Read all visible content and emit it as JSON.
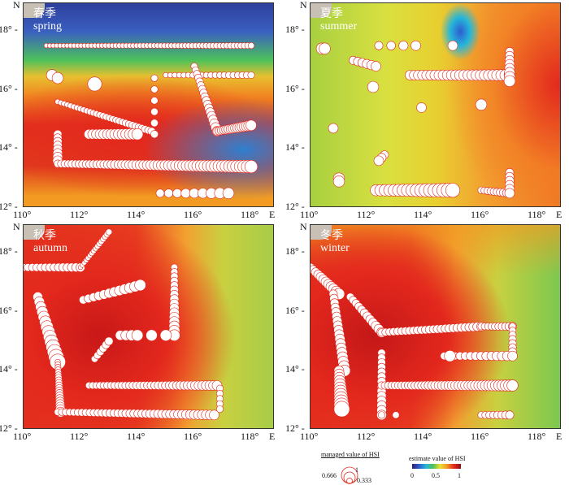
{
  "axes": {
    "x_ticks": [
      "110°",
      "112°",
      "114°",
      "116°",
      "118°"
    ],
    "x_unit": "E",
    "y_ticks": [
      "12°",
      "14°",
      "16°",
      "18°"
    ],
    "y_unit": "N"
  },
  "panels": [
    {
      "id": "spring",
      "zh": "春季",
      "en": "spring",
      "tracks": [
        [
          110.8,
          17.5,
          118,
          17.5,
          60,
          0.15,
          0.25
        ],
        [
          111.2,
          15.6,
          114.5,
          14.6,
          30,
          0.2,
          0.35
        ],
        [
          111.2,
          14.5,
          111.2,
          13.6,
          8,
          0.4,
          0.5
        ],
        [
          111.2,
          13.5,
          118,
          13.4,
          55,
          0.35,
          0.7
        ],
        [
          112.3,
          14.5,
          114,
          14.5,
          14,
          0.5,
          0.6
        ],
        [
          115,
          16.5,
          118,
          16.5,
          20,
          0.2,
          0.3
        ],
        [
          116,
          16.8,
          116.8,
          14.6,
          18,
          0.3,
          0.5
        ],
        [
          116.8,
          14.6,
          118,
          14.8,
          16,
          0.4,
          0.55
        ],
        [
          114.6,
          16.4,
          114.6,
          14.5,
          6,
          0.3,
          0.35
        ],
        [
          114.8,
          12.5,
          117.2,
          12.5,
          9,
          0.4,
          0.6
        ],
        [
          111,
          16.5,
          111.2,
          16.4,
          2,
          0.6,
          0.6
        ],
        [
          112.5,
          16.2,
          112.5,
          16.2,
          1,
          0.8,
          0.8
        ]
      ]
    },
    {
      "id": "summer",
      "zh": "夏季",
      "en": "summer",
      "tracks": [
        [
          110.4,
          17.4,
          110.5,
          17.4,
          2,
          0.6,
          0.6
        ],
        [
          111.5,
          17,
          112.3,
          16.8,
          6,
          0.4,
          0.5
        ],
        [
          112.4,
          17.5,
          113.7,
          17.5,
          4,
          0.4,
          0.5
        ],
        [
          115,
          17.5,
          115,
          17.5,
          1,
          0.5,
          0.5
        ],
        [
          113.5,
          16.5,
          117,
          16.5,
          25,
          0.5,
          0.6
        ],
        [
          117,
          17.3,
          117,
          16.3,
          8,
          0.4,
          0.6
        ],
        [
          112.2,
          16.1,
          112.2,
          16.1,
          1,
          0.6,
          0.6
        ],
        [
          113.9,
          15.4,
          113.9,
          15.4,
          1,
          0.5,
          0.5
        ],
        [
          116,
          15.5,
          116,
          15.5,
          1,
          0.6,
          0.6
        ],
        [
          110.8,
          14.7,
          110.8,
          14.7,
          1,
          0.5,
          0.5
        ],
        [
          112.6,
          13.8,
          112.4,
          13.6,
          3,
          0.4,
          0.5
        ],
        [
          111,
          13,
          111,
          12.9,
          2,
          0.6,
          0.6
        ],
        [
          112.3,
          12.6,
          115,
          12.6,
          18,
          0.6,
          0.8
        ],
        [
          116,
          12.6,
          117,
          12.5,
          10,
          0.3,
          0.4
        ],
        [
          117,
          13.2,
          117,
          12.5,
          6,
          0.4,
          0.5
        ]
      ]
    },
    {
      "id": "autumn",
      "zh": "秋季",
      "en": "autumn",
      "tracks": [
        [
          110,
          17.5,
          112,
          17.5,
          14,
          0.35,
          0.45
        ],
        [
          112,
          17.5,
          113,
          18.7,
          16,
          0.15,
          0.25
        ],
        [
          110.5,
          16.5,
          111.2,
          14.3,
          14,
          0.5,
          0.9
        ],
        [
          111.2,
          14.3,
          111.3,
          12.6,
          20,
          0.2,
          0.5
        ],
        [
          111.2,
          12.6,
          116.7,
          12.5,
          40,
          0.3,
          0.5
        ],
        [
          112.3,
          13.5,
          116.8,
          13.5,
          36,
          0.3,
          0.5
        ],
        [
          112.1,
          16.4,
          114.1,
          16.9,
          12,
          0.4,
          0.6
        ],
        [
          115.3,
          17.5,
          115.3,
          15.2,
          16,
          0.3,
          0.6
        ],
        [
          113.4,
          15.2,
          114,
          15.2,
          4,
          0.5,
          0.6
        ],
        [
          114.5,
          15.2,
          115,
          15.2,
          2,
          0.6,
          0.6
        ],
        [
          112.5,
          14.4,
          113,
          15,
          6,
          0.3,
          0.4
        ],
        [
          116.9,
          13.4,
          116.9,
          12.7,
          5,
          0.3,
          0.3
        ]
      ]
    },
    {
      "id": "winter",
      "zh": "冬季",
      "en": "winter",
      "tracks": [
        [
          110,
          17.5,
          111,
          16.6,
          12,
          0.4,
          0.6
        ],
        [
          110.8,
          16.6,
          111.2,
          14,
          18,
          0.4,
          0.6
        ],
        [
          111,
          14,
          111.1,
          12.7,
          12,
          0.5,
          0.9
        ],
        [
          111.4,
          16.5,
          112.5,
          15.3,
          12,
          0.35,
          0.5
        ],
        [
          112.5,
          15.3,
          116,
          15.5,
          26,
          0.35,
          0.45
        ],
        [
          116,
          15.5,
          117.1,
          15.5,
          10,
          0.3,
          0.4
        ],
        [
          117.1,
          15.5,
          117.1,
          14.5,
          8,
          0.3,
          0.4
        ],
        [
          114.7,
          14.5,
          117.1,
          14.5,
          14,
          0.35,
          0.5
        ],
        [
          112.5,
          14.6,
          112.5,
          12.5,
          14,
          0.35,
          0.5
        ],
        [
          112.5,
          13.5,
          117.1,
          13.5,
          40,
          0.35,
          0.6
        ],
        [
          116,
          12.5,
          117,
          12.5,
          8,
          0.3,
          0.4
        ],
        [
          112.5,
          12.5,
          113,
          12.5,
          2,
          0.3,
          0.3
        ],
        [
          114.9,
          14.5,
          114.9,
          14.5,
          1,
          0.6,
          0.6
        ]
      ]
    }
  ],
  "legend": {
    "managed_title": "managed value of HSI",
    "managed_values": [
      "1",
      "0.666",
      "0.333"
    ],
    "estimate_title": "estimate value of HSI",
    "estimate_ticks": [
      "0",
      "0.5",
      "1"
    ],
    "colors": [
      "#2a1f7a",
      "#2f5bd0",
      "#25b6d9",
      "#4cc15a",
      "#e8e030",
      "#f29a22",
      "#e3281d",
      "#8b1010"
    ],
    "point_fill": "#ffffff",
    "point_stroke": "#e3281d"
  }
}
